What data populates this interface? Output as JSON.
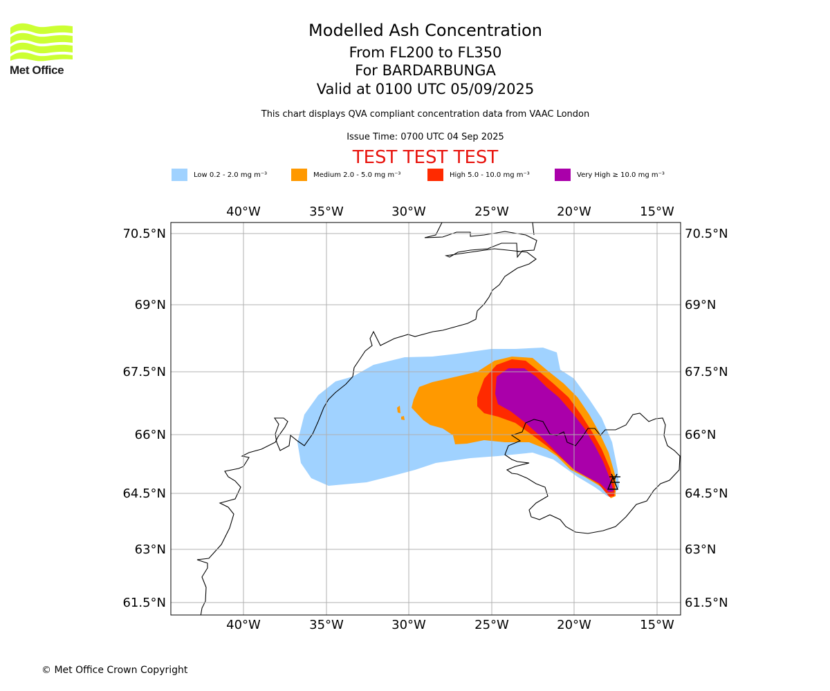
{
  "header": {
    "title": "Modelled Ash Concentration",
    "levels": "From FL200 to FL350",
    "volcano": "For BARDARBUNGA",
    "valid": "Valid at 0100 UTC 05/09/2025",
    "disclaimer": "This chart displays QVA compliant concentration data from VAAC London",
    "issue_time": "Issue Time: 0700 UTC 04 Sep 2025",
    "test_banner": "TEST TEST TEST"
  },
  "logo": {
    "text": "Met Office",
    "color": "#ccff33"
  },
  "legend": [
    {
      "name": "Low",
      "label": "Low 0.2 - 2.0 mg m⁻³",
      "color": "#a0d2ff"
    },
    {
      "name": "Medium",
      "label": "Medium 2.0 - 5.0 mg m⁻³",
      "color": "#ff9900"
    },
    {
      "name": "High",
      "label": "High 5.0 - 10.0 mg m⁻³",
      "color": "#ff2a00"
    },
    {
      "name": "Very High",
      "label": "Very High ≥ 10.0 mg m⁻³",
      "color": "#aa00aa"
    }
  ],
  "map": {
    "lon_ticks": [
      "40°W",
      "35°W",
      "30°W",
      "25°W",
      "20°W",
      "15°W"
    ],
    "lat_ticks": [
      "70.5°N",
      "69°N",
      "67.5°N",
      "66°N",
      "64.5°N",
      "63°N",
      "61.5°N"
    ],
    "grid": true,
    "volcano_symbol": "volcano-icon"
  },
  "footer": {
    "copyright": "© Met Office Crown Copyright"
  }
}
